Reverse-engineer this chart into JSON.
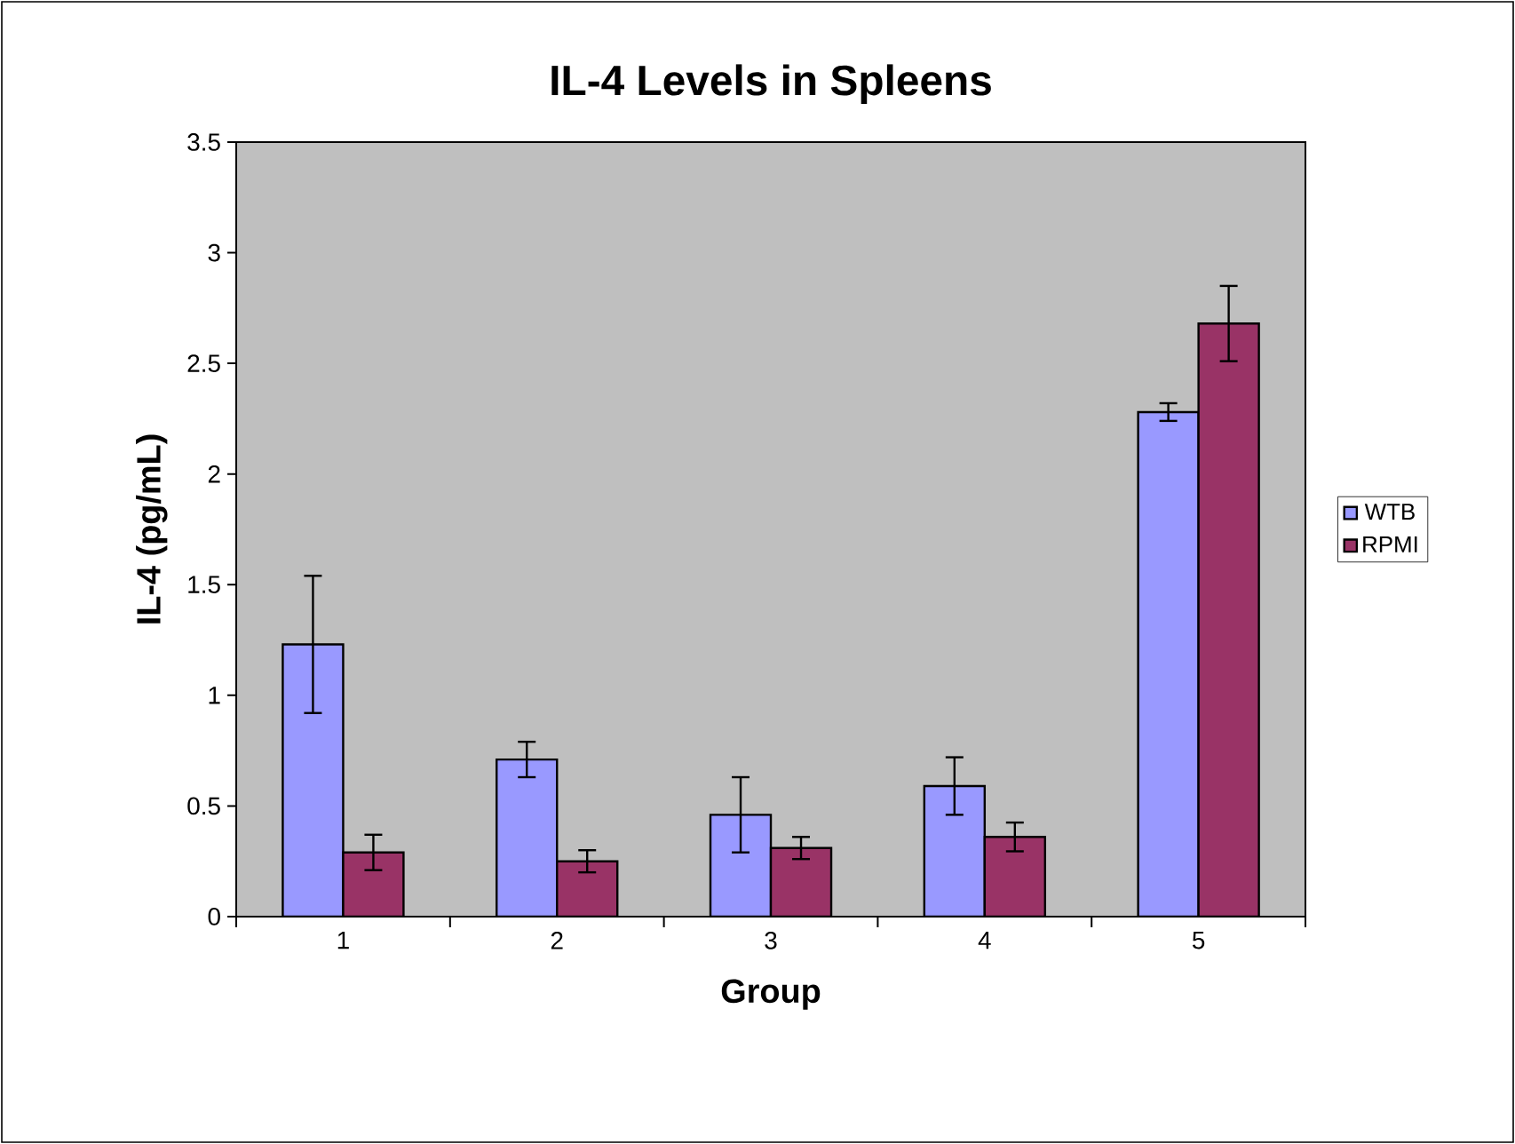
{
  "chart_data": {
    "type": "bar",
    "title": "IL-4 Levels in Spleens",
    "xlabel": "Group",
    "ylabel": "IL-4 (pg/mL)",
    "categories": [
      "1",
      "2",
      "3",
      "4",
      "5"
    ],
    "series": [
      {
        "name": "WTB",
        "color": "#9999ff",
        "values": [
          1.23,
          0.71,
          0.46,
          0.59,
          2.28
        ],
        "errors": [
          0.31,
          0.08,
          0.17,
          0.13,
          0.04
        ]
      },
      {
        "name": "RPMI",
        "color": "#993366",
        "values": [
          0.29,
          0.25,
          0.31,
          0.36,
          2.68
        ],
        "errors": [
          0.08,
          0.05,
          0.05,
          0.065,
          0.17
        ]
      }
    ],
    "ylim": [
      0,
      3.5
    ],
    "yticks": [
      0,
      0.5,
      1,
      1.5,
      2,
      2.5,
      3,
      3.5
    ],
    "legend": "right"
  }
}
